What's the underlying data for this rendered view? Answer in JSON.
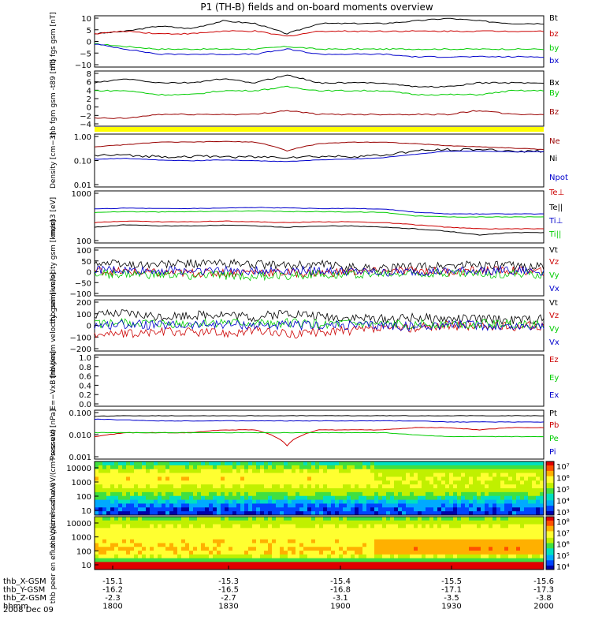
{
  "title": "P1 (TH-B) fields and on-board moments overview",
  "colors": {
    "black": "#000000",
    "red": "#cc0000",
    "green": "#00cc00",
    "blue": "#0000cc",
    "darkred": "#990000",
    "yellow": "#ffff00"
  },
  "chart_data": [
    {
      "type": "line",
      "ylabel": "thb fgs gsm [nT]",
      "ylim": [
        -10,
        10
      ],
      "ticks": [
        "10",
        "5",
        "0",
        "−5",
        "−10"
      ],
      "series": [
        {
          "name": "Bt",
          "color": "black",
          "values": [
            3,
            4,
            6,
            5,
            8,
            7,
            3,
            7,
            7,
            7,
            8,
            9,
            8,
            7,
            7
          ]
        },
        {
          "name": "bz",
          "color": "red",
          "values": [
            3,
            4,
            3,
            3,
            4,
            4,
            2,
            4,
            4,
            4,
            4,
            4,
            4,
            4,
            4
          ]
        },
        {
          "name": "by",
          "color": "green",
          "values": [
            -1,
            -2,
            -3,
            -3,
            -3,
            -3,
            -2,
            -3,
            -3,
            -3,
            -3,
            -3,
            -3,
            -3,
            -3
          ]
        },
        {
          "name": "bx",
          "color": "blue",
          "values": [
            -1,
            -3,
            -5,
            -5,
            -5,
            -5,
            -3,
            -5,
            -5,
            -5,
            -6,
            -6,
            -6,
            -6,
            -6
          ]
        }
      ]
    },
    {
      "type": "line",
      "ylabel": "thb fgm gsm -t89 [nT]",
      "ylim": [
        -5,
        9
      ],
      "ticks": [
        "8",
        "6",
        "4",
        "2",
        "0",
        "−2",
        "−4"
      ],
      "series": [
        {
          "name": "Bx",
          "color": "black",
          "values": [
            6,
            7,
            6,
            6,
            7,
            6,
            8,
            6,
            6,
            6,
            5,
            5,
            6,
            6,
            6
          ]
        },
        {
          "name": "By",
          "color": "green",
          "values": [
            4,
            4,
            3,
            3,
            4,
            4,
            5,
            4,
            4,
            4,
            3,
            3,
            3,
            4,
            4
          ]
        },
        {
          "name": "Bz",
          "color": "darkred",
          "values": [
            -3,
            -3,
            -2,
            -2,
            -2,
            -2,
            -1,
            -2,
            -2,
            -2,
            -2,
            -2,
            -1,
            -2,
            -2
          ]
        }
      ]
    },
    {
      "type": "line",
      "ylabel": "Density [cm−3]",
      "log": true,
      "ylim": [
        0.01,
        1.5
      ],
      "ticks": [
        "1.00",
        "0.10",
        "0.01"
      ],
      "series": [
        {
          "name": "Ne",
          "color": "darkred",
          "values": [
            0.45,
            0.55,
            0.7,
            0.7,
            0.75,
            0.7,
            0.3,
            0.6,
            0.7,
            0.7,
            0.6,
            0.5,
            0.45,
            0.4,
            0.35
          ]
        },
        {
          "name": "Ni",
          "color": "black",
          "values": [
            0.2,
            0.2,
            0.18,
            0.18,
            0.18,
            0.17,
            0.17,
            0.18,
            0.18,
            0.2,
            0.3,
            0.35,
            0.35,
            0.3,
            0.3
          ]
        },
        {
          "name": "Npot",
          "color": "blue",
          "values": [
            0.14,
            0.15,
            0.13,
            0.12,
            0.13,
            0.12,
            0.11,
            0.13,
            0.14,
            0.16,
            0.22,
            0.3,
            0.3,
            0.28,
            0.28
          ]
        }
      ]
    },
    {
      "type": "line",
      "ylabel": "mom3 [eV]",
      "log": true,
      "ylim": [
        100,
        10000
      ],
      "ticks": [
        "1000",
        "100"
      ],
      "series": [
        {
          "name": "Te⊥",
          "color": "red",
          "values": [
            600,
            700,
            650,
            650,
            700,
            650,
            600,
            650,
            650,
            600,
            500,
            400,
            350,
            350,
            350
          ]
        },
        {
          "name": "Te||",
          "color": "black",
          "values": [
            400,
            500,
            450,
            450,
            480,
            450,
            400,
            450,
            450,
            400,
            350,
            280,
            200,
            250,
            250
          ]
        },
        {
          "name": "Ti⊥",
          "color": "blue",
          "values": [
            2000,
            2200,
            2100,
            2100,
            2200,
            2300,
            2200,
            2100,
            2100,
            2000,
            1500,
            1300,
            1300,
            1300,
            1300
          ]
        },
        {
          "name": "Ti||",
          "color": "green",
          "values": [
            1500,
            1600,
            1550,
            1600,
            1650,
            1700,
            1600,
            1600,
            1550,
            1500,
            1100,
            1000,
            1000,
            1000,
            1000
          ]
        }
      ]
    },
    {
      "type": "line",
      "ylabel": "thb peim velocity gsm [km/s]",
      "ylim": [
        -100,
        100
      ],
      "ticks": [
        "100",
        "50",
        "0",
        "−50",
        "−100"
      ],
      "series": [
        {
          "name": "Vt",
          "color": "black",
          "values": [
            40,
            30,
            30,
            35,
            35,
            30,
            25,
            30,
            20,
            15,
            20,
            25,
            30,
            25,
            20
          ]
        },
        {
          "name": "Vz",
          "color": "red",
          "values": [
            5,
            0,
            -5,
            -5,
            -5,
            0,
            -5,
            -5,
            0,
            0,
            5,
            0,
            5,
            5,
            0
          ]
        },
        {
          "name": "Vy",
          "color": "green",
          "values": [
            -10,
            -10,
            -15,
            -15,
            -15,
            -20,
            -15,
            -10,
            -10,
            -10,
            -5,
            -5,
            -10,
            -10,
            -10
          ]
        },
        {
          "name": "Vx",
          "color": "blue",
          "values": [
            10,
            5,
            5,
            5,
            5,
            5,
            5,
            5,
            0,
            -5,
            0,
            0,
            5,
            5,
            0
          ]
        }
      ]
    },
    {
      "type": "line",
      "ylabel": "thb peem velocity gsm [km/s]",
      "ylim": [
        -200,
        200
      ],
      "ticks": [
        "200",
        "100",
        "0",
        "−100",
        "−200"
      ],
      "series": [
        {
          "name": "Vt",
          "color": "black",
          "values": [
            80,
            90,
            70,
            80,
            90,
            60,
            100,
            70,
            60,
            50,
            60,
            50,
            50,
            40,
            50
          ]
        },
        {
          "name": "Vz",
          "color": "red",
          "values": [
            -60,
            -70,
            -50,
            -50,
            -60,
            -40,
            -70,
            -50,
            -40,
            -30,
            -20,
            0,
            -10,
            -10,
            0
          ]
        },
        {
          "name": "Vy",
          "color": "green",
          "values": [
            10,
            20,
            10,
            10,
            20,
            10,
            20,
            10,
            10,
            0,
            10,
            10,
            10,
            10,
            10
          ]
        },
        {
          "name": "Vx",
          "color": "blue",
          "values": [
            0,
            10,
            0,
            0,
            10,
            0,
            0,
            0,
            0,
            0,
            -10,
            10,
            0,
            -10,
            0
          ]
        }
      ]
    },
    {
      "type": "line",
      "ylabel": "E=−VxB [mV/m]",
      "ylim": [
        0,
        1
      ],
      "ticks": [
        "1.0",
        "0.8",
        "0.6",
        "0.4",
        "0.2",
        "0.0"
      ],
      "series": [
        {
          "name": "Ez",
          "color": "red",
          "values": []
        },
        {
          "name": "Ey",
          "color": "green",
          "values": []
        },
        {
          "name": "Ex",
          "color": "blue",
          "values": []
        }
      ]
    },
    {
      "type": "line",
      "ylabel": "Pressure [nPa]",
      "log": true,
      "ylim": [
        0.001,
        0.15
      ],
      "ticks": [
        "0.100",
        "0.010",
        "0.001"
      ],
      "series": [
        {
          "name": "Pt",
          "color": "black",
          "values": [
            0.08,
            0.085,
            0.085,
            0.085,
            0.085,
            0.085,
            0.085,
            0.085,
            0.085,
            0.085,
            0.085,
            0.085,
            0.085,
            0.085,
            0.085
          ]
        },
        {
          "name": "Pb",
          "color": "red",
          "values": [
            0.01,
            0.015,
            0.015,
            0.015,
            0.02,
            0.02,
            0.004,
            0.02,
            0.02,
            0.02,
            0.025,
            0.025,
            0.02,
            0.025,
            0.025
          ]
        },
        {
          "name": "Pe",
          "color": "green",
          "values": [
            0.015,
            0.015,
            0.015,
            0.015,
            0.015,
            0.015,
            0.015,
            0.015,
            0.015,
            0.015,
            0.012,
            0.01,
            0.01,
            0.01,
            0.01
          ]
        },
        {
          "name": "Pi",
          "color": "blue",
          "values": [
            0.06,
            0.055,
            0.05,
            0.05,
            0.05,
            0.05,
            0.05,
            0.05,
            0.05,
            0.05,
            0.05,
            0.045,
            0.045,
            0.045,
            0.045
          ]
        }
      ]
    },
    {
      "type": "heatmap",
      "ylabel": "thb peir en eflux eV/(cm²-s-sr-eV)",
      "yticks": [
        "10000",
        "1000",
        "100",
        "10"
      ],
      "colorbar": [
        "10⁷",
        "10⁶",
        "10⁵",
        "10⁴",
        "10³"
      ]
    },
    {
      "type": "heatmap",
      "ylabel": "thb peer en eflux eV/(cm²-s-sr-eV)",
      "yticks": [
        "10000",
        "1000",
        "100",
        "10"
      ],
      "colorbar": [
        "10⁸",
        "10⁷",
        "10⁶",
        "10⁵",
        "10⁴"
      ]
    }
  ],
  "xaxis": {
    "rows": [
      {
        "label": "thb_X-GSM",
        "values": [
          "-15.1",
          "-15.3",
          "-15.4",
          "-15.5",
          "-15.6"
        ]
      },
      {
        "label": "thb_Y-GSM",
        "values": [
          "-16.2",
          "-16.5",
          "-16.8",
          "-17.1",
          "-17.3"
        ]
      },
      {
        "label": "thb_Z-GSM",
        "values": [
          "-2.3",
          "-2.7",
          "-3.1",
          "-3.5",
          "-3.8"
        ]
      },
      {
        "label": "hhmm",
        "values": [
          "1800",
          "1830",
          "1900",
          "1930",
          "2000"
        ]
      }
    ],
    "date": "2008 Dec 09"
  }
}
